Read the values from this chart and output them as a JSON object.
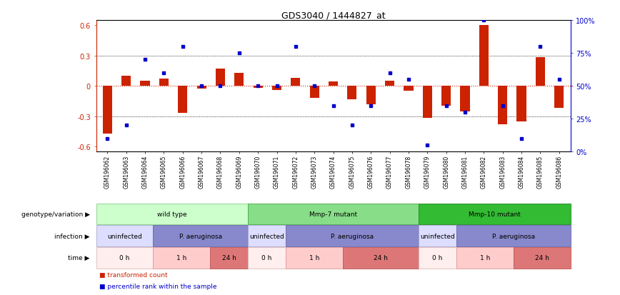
{
  "title": "GDS3040 / 1444827_at",
  "samples": [
    "GSM196062",
    "GSM196063",
    "GSM196064",
    "GSM196065",
    "GSM196066",
    "GSM196067",
    "GSM196068",
    "GSM196069",
    "GSM196070",
    "GSM196071",
    "GSM196072",
    "GSM196073",
    "GSM196074",
    "GSM196075",
    "GSM196076",
    "GSM196077",
    "GSM196078",
    "GSM196079",
    "GSM196080",
    "GSM196081",
    "GSM196082",
    "GSM196083",
    "GSM196084",
    "GSM196085",
    "GSM196086"
  ],
  "bar_values": [
    -0.47,
    0.1,
    0.05,
    0.07,
    -0.27,
    -0.03,
    0.17,
    0.13,
    -0.02,
    -0.04,
    0.08,
    -0.12,
    0.04,
    -0.13,
    -0.18,
    0.05,
    -0.05,
    -0.32,
    -0.2,
    -0.25,
    0.6,
    -0.38,
    -0.35,
    0.28,
    -0.22
  ],
  "dot_values": [
    10,
    20,
    70,
    60,
    80,
    50,
    50,
    75,
    50,
    50,
    80,
    50,
    35,
    20,
    35,
    60,
    55,
    5,
    35,
    30,
    100,
    35,
    10,
    80,
    55
  ],
  "bar_color": "#cc2200",
  "dot_color": "#0000cc",
  "ylim": [
    -0.65,
    0.65
  ],
  "y2lim": [
    0,
    100
  ],
  "y_ticks": [
    -0.6,
    -0.3,
    0.0,
    0.3,
    0.6
  ],
  "y2_ticks": [
    0,
    25,
    50,
    75,
    100
  ],
  "y2_tick_labels": [
    "0%",
    "25%",
    "50%",
    "75%",
    "100%"
  ],
  "hline_dotted": [
    -0.3,
    0.3
  ],
  "genotype_groups": [
    {
      "label": "wild type",
      "start": 0,
      "end": 8,
      "color": "#ccffcc",
      "border": "#88cc88"
    },
    {
      "label": "Mmp-7 mutant",
      "start": 8,
      "end": 17,
      "color": "#88dd88",
      "border": "#44aa44"
    },
    {
      "label": "Mmp-10 mutant",
      "start": 17,
      "end": 25,
      "color": "#33bb33",
      "border": "#228822"
    }
  ],
  "infection_groups": [
    {
      "label": "uninfected",
      "start": 0,
      "end": 3,
      "color": "#ddddff",
      "border": "#aaaacc"
    },
    {
      "label": "P. aeruginosa",
      "start": 3,
      "end": 8,
      "color": "#8888cc",
      "border": "#6666aa"
    },
    {
      "label": "uninfected",
      "start": 8,
      "end": 10,
      "color": "#ddddff",
      "border": "#aaaacc"
    },
    {
      "label": "P. aeruginosa",
      "start": 10,
      "end": 17,
      "color": "#8888cc",
      "border": "#6666aa"
    },
    {
      "label": "uninfected",
      "start": 17,
      "end": 19,
      "color": "#ddddff",
      "border": "#aaaacc"
    },
    {
      "label": "P. aeruginosa",
      "start": 19,
      "end": 25,
      "color": "#8888cc",
      "border": "#6666aa"
    }
  ],
  "time_groups": [
    {
      "label": "0 h",
      "start": 0,
      "end": 3,
      "color": "#ffeeee",
      "border": "#ddbbbb"
    },
    {
      "label": "1 h",
      "start": 3,
      "end": 6,
      "color": "#ffcccc",
      "border": "#dd9999"
    },
    {
      "label": "24 h",
      "start": 6,
      "end": 8,
      "color": "#dd7777",
      "border": "#bb5555"
    },
    {
      "label": "0 h",
      "start": 8,
      "end": 10,
      "color": "#ffeeee",
      "border": "#ddbbbb"
    },
    {
      "label": "1 h",
      "start": 10,
      "end": 13,
      "color": "#ffcccc",
      "border": "#dd9999"
    },
    {
      "label": "24 h",
      "start": 13,
      "end": 17,
      "color": "#dd7777",
      "border": "#bb5555"
    },
    {
      "label": "0 h",
      "start": 17,
      "end": 19,
      "color": "#ffeeee",
      "border": "#ddbbbb"
    },
    {
      "label": "1 h",
      "start": 19,
      "end": 22,
      "color": "#ffcccc",
      "border": "#dd9999"
    },
    {
      "label": "24 h",
      "start": 22,
      "end": 25,
      "color": "#dd7777",
      "border": "#bb5555"
    }
  ],
  "row_labels": [
    "genotype/variation",
    "infection",
    "time"
  ],
  "legend_items": [
    {
      "label": "transformed count",
      "color": "#cc2200"
    },
    {
      "label": "percentile rank within the sample",
      "color": "#0000cc"
    }
  ]
}
